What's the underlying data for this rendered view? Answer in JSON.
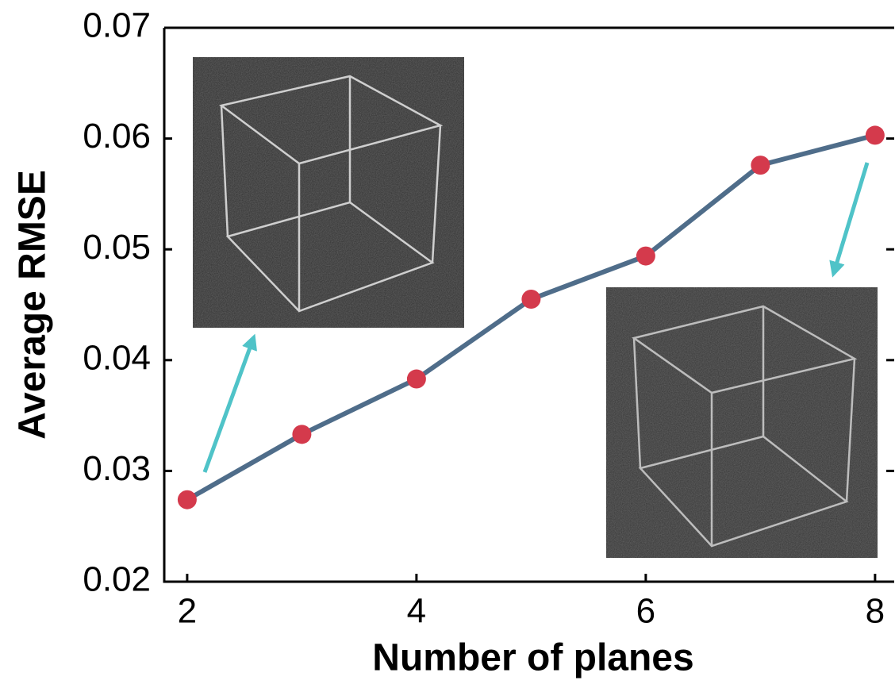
{
  "chart_data": {
    "type": "line",
    "x": [
      2,
      3,
      4,
      5,
      6,
      7,
      8
    ],
    "series": [
      {
        "color": "#4f6d8a",
        "marker_color": "#d43a4c",
        "values": [
          0.0274,
          0.0333,
          0.0383,
          0.0455,
          0.0494,
          0.0576,
          0.0603
        ]
      }
    ],
    "xlim": [
      1.8,
      8.167
    ],
    "xticks": [
      2,
      4,
      6,
      8
    ],
    "ylim": [
      0.02,
      0.07
    ],
    "yticks": [
      0.02,
      0.03,
      0.04,
      0.05,
      0.06,
      0.07
    ],
    "xlabel": "Number of planes",
    "ylabel": "Average RMSE"
  }
}
